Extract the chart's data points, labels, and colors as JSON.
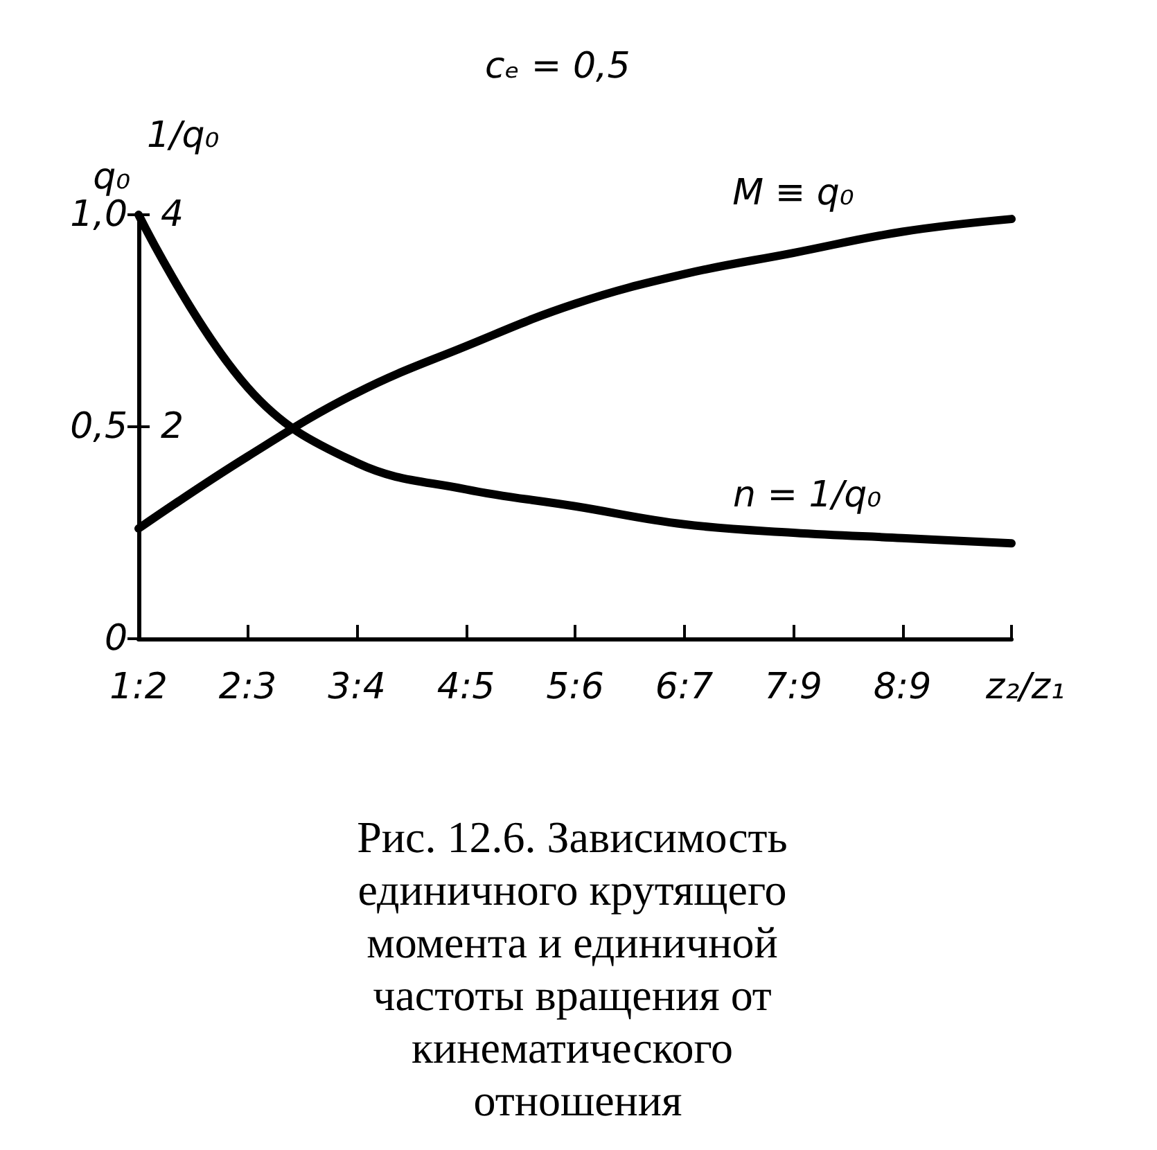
{
  "chart_data": {
    "type": "line",
    "title": "cₑ = 0,5",
    "xlabel": "z₂/z₁",
    "ylabel": "q₀",
    "y2label": "1/q₀",
    "categories": [
      "1:2",
      "2:3",
      "3:4",
      "4:5",
      "5:6",
      "6:7",
      "7:9",
      "8:9",
      null
    ],
    "series": [
      {
        "name": "M ≡ q₀",
        "color": "#000000",
        "values": [
          0.26,
          0.43,
          0.58,
          0.69,
          0.79,
          0.86,
          0.91,
          0.96,
          0.99
        ]
      },
      {
        "name": "n = 1/q₀",
        "color": "#000000",
        "axis": "y2",
        "values": [
          4.0,
          2.37,
          1.66,
          1.41,
          1.25,
          1.08,
          1.0,
          0.95,
          0.9
        ]
      }
    ],
    "ylim": [
      0,
      1
    ],
    "yticks": [
      0,
      {
        "value": 0.5,
        "label": "0,5"
      },
      {
        "value": 1,
        "label": "1,0"
      }
    ],
    "y2lim": [
      0,
      4
    ],
    "y2ticks": [
      2,
      4
    ],
    "grid": false,
    "legend": false,
    "marker": "none",
    "line_style": "solid",
    "annotations": [
      "Рис. 12.6. Зависимость единичного крутящего момента и единичной частоты вращения от кинематического отношения"
    ]
  }
}
